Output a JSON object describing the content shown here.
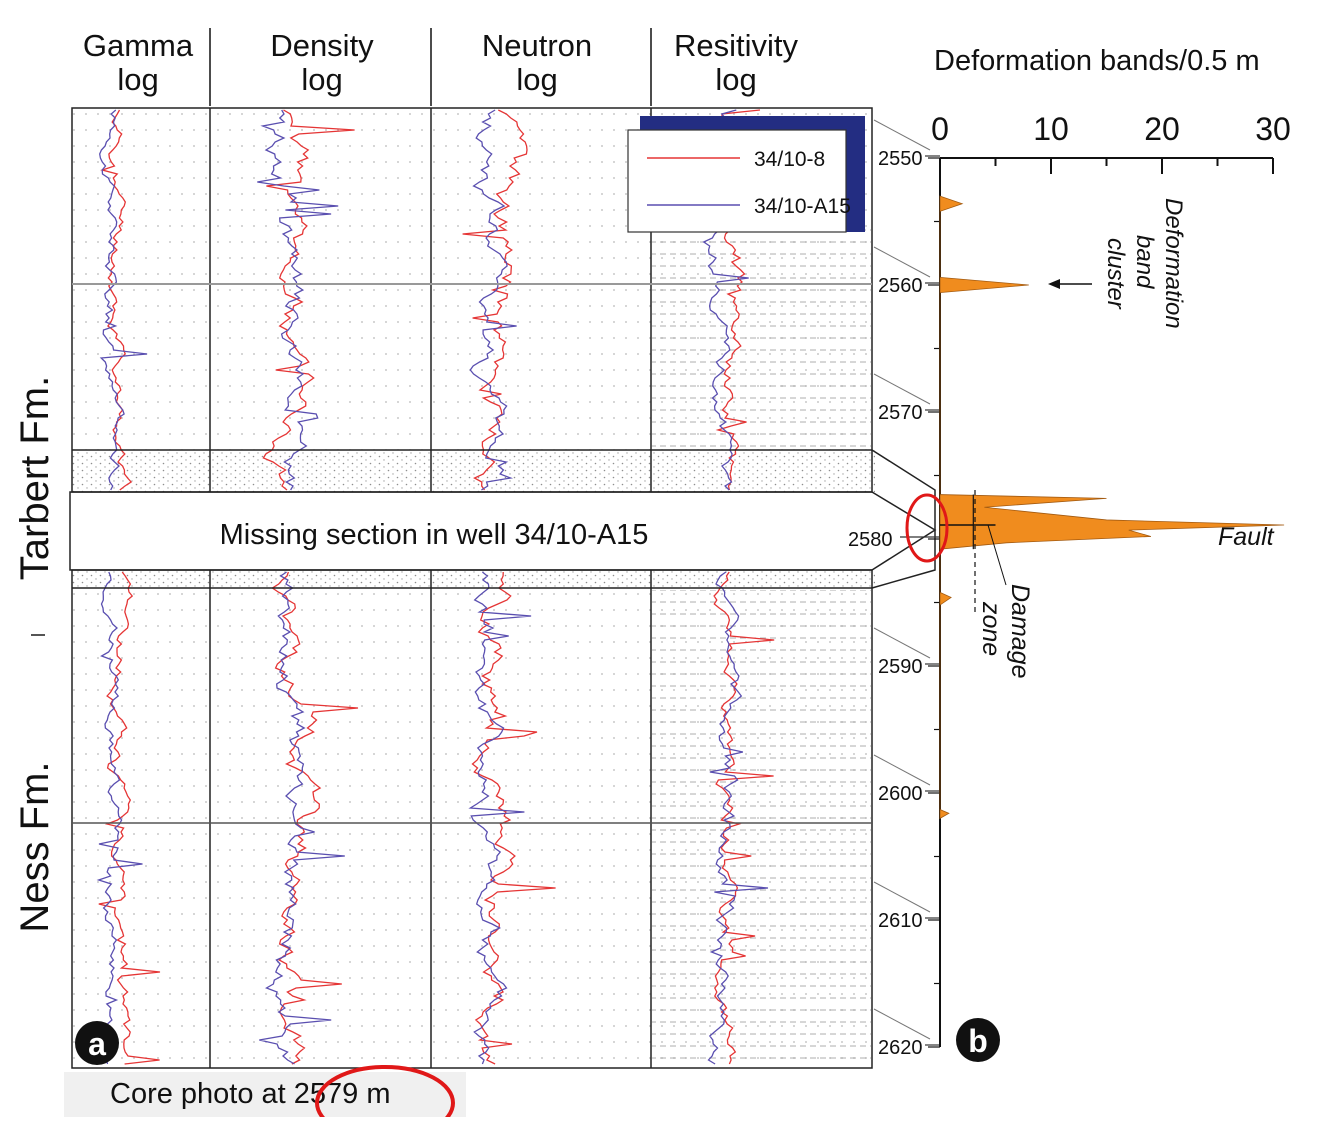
{
  "log_headers": [
    {
      "line1": "Gamma",
      "line2": "log"
    },
    {
      "line1": "Density",
      "line2": "log"
    },
    {
      "line1": "Neutron",
      "line2": "log"
    },
    {
      "line1": "Resitivity",
      "line2": "log"
    }
  ],
  "legend": {
    "items": [
      {
        "label": "34/10-8",
        "color": "#e53535"
      },
      {
        "label": "34/10-A15",
        "color": "#5a4fb0"
      }
    ]
  },
  "formations": {
    "tarbert": "Tarbert Fm.",
    "ness": "Ness Fm."
  },
  "missing_section_label": "Missing section in well 34/10-A15",
  "panel_a_label": "a",
  "panel_b_label": "b",
  "core_photo_caption": "Core photo at 2579 m",
  "depth_labels": [
    "2550",
    "2560",
    "2570",
    "2580",
    "2590",
    "2600",
    "2610",
    "2620"
  ],
  "deformation_chart": {
    "title": "Deformation bands/0.5 m",
    "x_ticks": [
      "0",
      "10",
      "20",
      "30"
    ],
    "annotations": {
      "cluster": [
        "Deformation",
        "band",
        "cluster"
      ],
      "fault": "Fault",
      "damage": [
        "Damage",
        "zone"
      ]
    }
  },
  "chart_data": {
    "type": "area",
    "title": "Deformation bands/0.5 m",
    "xlabel": "Deformation bands/0.5 m",
    "ylabel": "",
    "xlim": [
      0,
      30
    ],
    "ylim": [
      2550,
      2620
    ],
    "y_reversed": true,
    "x_ticks": [
      0,
      10,
      20,
      30
    ],
    "y_ticks": [
      2550,
      2560,
      2570,
      2580,
      2590,
      2600,
      2610,
      2620
    ],
    "series": [
      {
        "points": [
          {
            "depth": 2553.0,
            "count": 0
          },
          {
            "depth": 2553.6,
            "count": 2
          },
          {
            "depth": 2554.2,
            "count": 0
          },
          {
            "depth": 2559.4,
            "count": 0
          },
          {
            "depth": 2560.0,
            "count": 8
          },
          {
            "depth": 2560.6,
            "count": 0
          },
          {
            "depth": 2576.5,
            "count": 0
          },
          {
            "depth": 2576.8,
            "count": 15
          },
          {
            "depth": 2577.5,
            "count": 4
          },
          {
            "depth": 2578.5,
            "count": 15
          },
          {
            "depth": 2578.9,
            "count": 31
          },
          {
            "depth": 2579.3,
            "count": 17
          },
          {
            "depth": 2579.8,
            "count": 19
          },
          {
            "depth": 2580.3,
            "count": 6
          },
          {
            "depth": 2580.8,
            "count": 0
          },
          {
            "depth": 2584.2,
            "count": 0
          },
          {
            "depth": 2584.6,
            "count": 1
          },
          {
            "depth": 2585.2,
            "count": 0
          },
          {
            "depth": 2601.3,
            "count": 0
          },
          {
            "depth": 2601.6,
            "count": 0.8
          },
          {
            "depth": 2602.0,
            "count": 0
          }
        ]
      }
    ],
    "fill_color": "#f08c1e"
  }
}
